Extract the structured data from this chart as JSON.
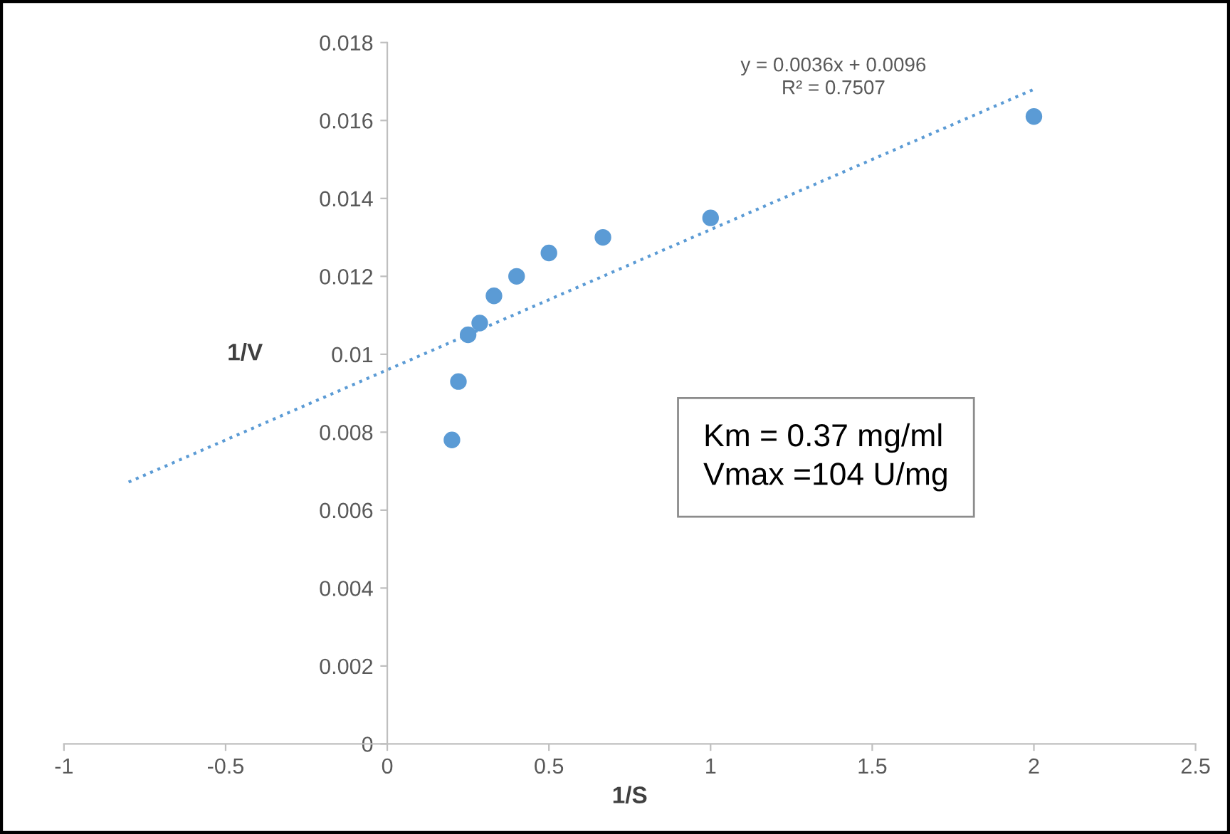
{
  "chart_data": {
    "type": "scatter",
    "xlabel": "1/S",
    "ylabel": "1/V",
    "series": [
      {
        "color": "#5b9bd5",
        "marker": "circle",
        "x": [
          0.2,
          0.22,
          0.25,
          0.286,
          0.33,
          0.4,
          0.5,
          0.667,
          1.0,
          2.0
        ],
        "values": [
          0.0078,
          0.0093,
          0.0105,
          0.0108,
          0.0115,
          0.012,
          0.0126,
          0.013,
          0.0135,
          0.0161
        ]
      },
      {
        "type": "line",
        "color": "#5b9bd5",
        "line_style": "dotted",
        "marker": "none",
        "x": [
          -0.8,
          2.0
        ],
        "values": [
          0.00672,
          0.0168
        ]
      }
    ],
    "annotations": [
      "y = 0.0036x + 0.0096\nR² = 0.7507",
      "Km = 0.37 mg/ml\nVmax =104 U/mg"
    ],
    "xlim": [
      -1,
      2.5
    ],
    "xticks": [
      -1,
      -0.5,
      0,
      0.5,
      1,
      1.5,
      2,
      2.5
    ],
    "ylim": [
      0,
      0.018
    ],
    "yticks": [
      0,
      0.002,
      0.004,
      0.006,
      0.008,
      0.01,
      0.012,
      0.014,
      0.016,
      0.018
    ],
    "grid": false,
    "legend": false
  }
}
